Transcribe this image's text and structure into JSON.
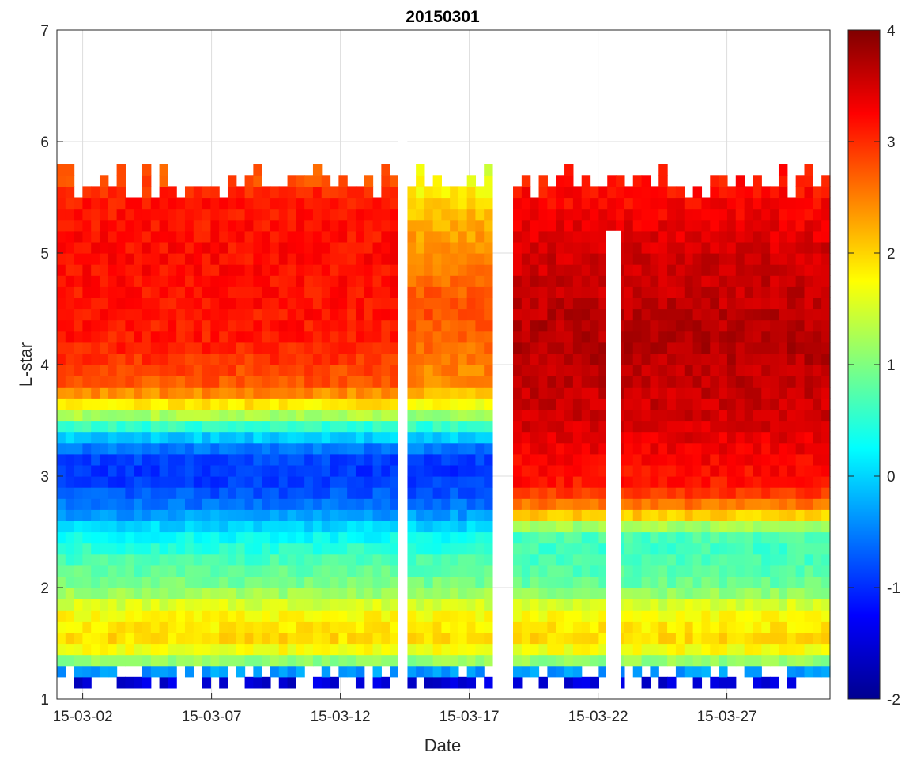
{
  "chart_data": {
    "type": "heatmap",
    "title": "20150301",
    "xlabel": "Date",
    "ylabel": "L-star",
    "x_range": [
      "2015-03-01",
      "2015-03-31"
    ],
    "ylim": [
      1,
      7
    ],
    "x_ticks": [
      {
        "date": "2015-03-02",
        "label": "15-03-02"
      },
      {
        "date": "2015-03-07",
        "label": "15-03-07"
      },
      {
        "date": "2015-03-12",
        "label": "15-03-12"
      },
      {
        "date": "2015-03-17",
        "label": "15-03-17"
      },
      {
        "date": "2015-03-22",
        "label": "15-03-22"
      },
      {
        "date": "2015-03-27",
        "label": "15-03-27"
      }
    ],
    "y_ticks": [
      1,
      2,
      3,
      4,
      5,
      6,
      7
    ],
    "y_tick_labels": [
      "1",
      "2",
      "3",
      "4",
      "5",
      "6",
      "7"
    ],
    "grid": true,
    "colorbar": {
      "colormap": "jet",
      "range": [
        -2,
        4
      ],
      "ticks": [
        -2,
        -1,
        0,
        1,
        2,
        3,
        4
      ],
      "tick_labels": [
        "-2",
        "-1",
        "0",
        "1",
        "2",
        "3",
        "4"
      ]
    },
    "cell": {
      "days": 0.333,
      "lstar": 0.1
    },
    "segments": [
      {
        "start": "2015-03-01",
        "end": "2015-03-14.25",
        "lmin": 1.1,
        "lmax": 5.8,
        "profile": [
          [
            1.2,
            -1.5
          ],
          [
            1.3,
            0.8
          ],
          [
            1.5,
            2.0
          ],
          [
            1.8,
            1.7
          ],
          [
            2.0,
            1.0
          ],
          [
            2.3,
            0.6
          ],
          [
            2.5,
            0.2
          ],
          [
            2.7,
            -0.5
          ],
          [
            3.0,
            -1.0
          ],
          [
            3.2,
            -0.8
          ],
          [
            3.4,
            0.2
          ],
          [
            3.6,
            1.6
          ],
          [
            3.8,
            2.7
          ],
          [
            4.2,
            3.1
          ],
          [
            5.0,
            3.2
          ],
          [
            5.5,
            3.1
          ],
          [
            5.7,
            2.7
          ]
        ]
      },
      {
        "start": "2015-03-14.6",
        "end": "2015-03-17.9",
        "lmin": 1.1,
        "lmax": 5.8,
        "profile": [
          [
            1.2,
            -1.5
          ],
          [
            1.3,
            0.8
          ],
          [
            1.5,
            2.0
          ],
          [
            1.8,
            1.7
          ],
          [
            2.0,
            1.0
          ],
          [
            2.3,
            0.6
          ],
          [
            2.5,
            0.2
          ],
          [
            2.7,
            -0.5
          ],
          [
            3.0,
            -1.0
          ],
          [
            3.2,
            -0.8
          ],
          [
            3.4,
            0.2
          ],
          [
            3.6,
            1.5
          ],
          [
            3.8,
            2.4
          ],
          [
            4.5,
            2.8
          ],
          [
            5.3,
            2.2
          ],
          [
            5.7,
            1.6
          ]
        ]
      },
      {
        "start": "2015-03-18.7",
        "end": "2015-03-31",
        "lmin": 1.1,
        "lmax": 5.8,
        "profile": [
          [
            1.2,
            -1.5
          ],
          [
            1.3,
            0.8
          ],
          [
            1.5,
            2.0
          ],
          [
            1.8,
            1.7
          ],
          [
            2.0,
            0.9
          ],
          [
            2.3,
            0.6
          ],
          [
            2.5,
            0.7
          ],
          [
            2.6,
            1.7
          ],
          [
            2.7,
            2.4
          ],
          [
            2.9,
            3.1
          ],
          [
            3.5,
            3.5
          ],
          [
            4.2,
            3.7
          ],
          [
            5.0,
            3.5
          ],
          [
            5.7,
            3.1
          ]
        ]
      }
    ],
    "data_gaps": [
      {
        "start": "2015-03-14.25",
        "end": "2015-03-14.6",
        "lmin": 1.0,
        "lmax": 7.0
      },
      {
        "start": "2015-03-22.3",
        "end": "2015-03-22.9",
        "lmin": 1.0,
        "lmax": 5.2
      }
    ]
  }
}
